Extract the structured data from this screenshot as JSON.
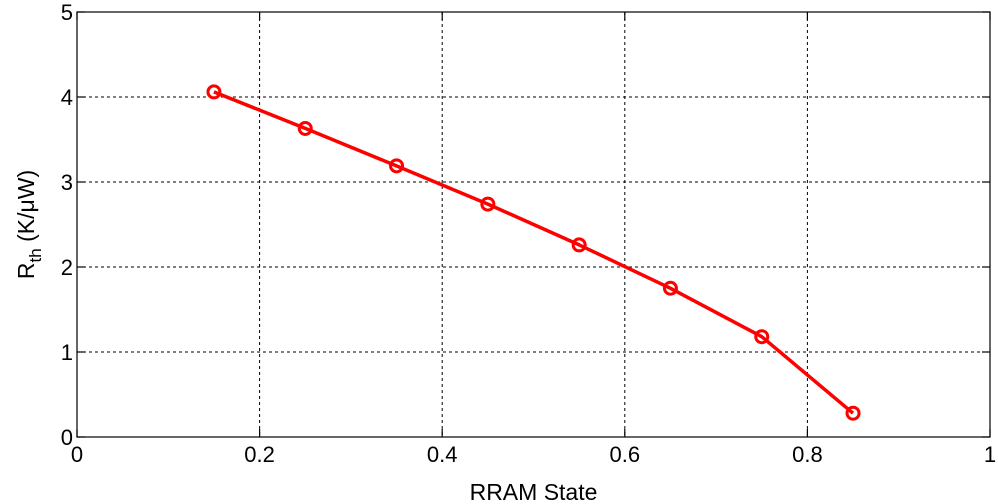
{
  "chart_data": {
    "type": "line",
    "title": "",
    "xlabel": "RRAM State",
    "ylabel": {
      "base": "R",
      "sub": "th",
      "unit": " (K/μW)"
    },
    "xlim": [
      0,
      1
    ],
    "ylim": [
      0,
      5
    ],
    "xticks": [
      0,
      0.2,
      0.4,
      0.6,
      0.8,
      1
    ],
    "xtick_labels": [
      "0",
      "0.2",
      "0.4",
      "0.6",
      "0.8",
      "1"
    ],
    "yticks": [
      0,
      1,
      2,
      3,
      4,
      5
    ],
    "ytick_labels": [
      "0",
      "1",
      "2",
      "3",
      "4",
      "5"
    ],
    "grid": true,
    "series": [
      {
        "color": "#ff0000",
        "marker": "circle",
        "x": [
          0.15,
          0.25,
          0.35,
          0.45,
          0.55,
          0.65,
          0.75,
          0.85
        ],
        "y": [
          4.06,
          3.63,
          3.19,
          2.74,
          2.26,
          1.75,
          1.18,
          0.28
        ]
      }
    ]
  }
}
